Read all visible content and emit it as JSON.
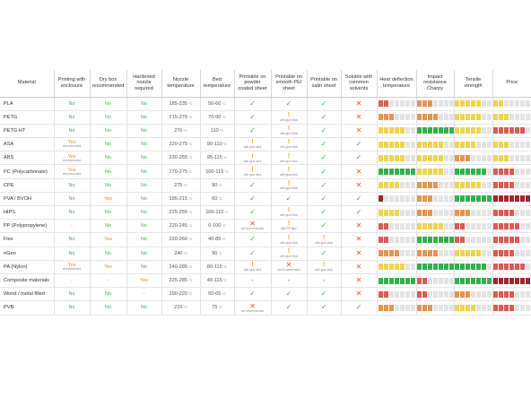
{
  "colors": {
    "ok": "#3fae49",
    "warn": "#f0a500",
    "bad": "#e2532e",
    "bar_green": "#2fb24a",
    "bar_yellow": "#eed54a",
    "bar_orange": "#e9944a",
    "bar_red": "#e2574f",
    "bar_darkred": "#a5232a",
    "bar_empty": "#e3e3e3"
  },
  "headers": {
    "material": "Material",
    "enclosure": "Printing with enclosure",
    "drybox": "Dry box recommended",
    "nozzle": "Hardened nozzle required",
    "nozzle_temp": "Nozzle temperature",
    "bed_temp": "Bed temperature",
    "powder": "Printable on powder coated sheet",
    "pei": "Printable on smooth PEI sheet",
    "satin": "Printable on satin sheet",
    "solvents": "Soluble with common solvents",
    "heat": "Heat deflection temperature",
    "impact": "Impact resistance Charpy",
    "tensile": "Tensile strength",
    "price": "Price"
  },
  "unit": "°C",
  "rows": [
    {
      "name": "PLA",
      "enclosure": {
        "t": "No"
      },
      "drybox": {
        "t": "No"
      },
      "nozzle": {
        "t": "No"
      },
      "nozzle_temp": "185-235",
      "bed_temp": "50-60",
      "powder": {
        "s": "ok"
      },
      "pei": {
        "s": "ok"
      },
      "satin": {
        "s": "ok"
      },
      "solvents": {
        "s": "bad"
      },
      "heat": {
        "level": 2,
        "color": "bar_red"
      },
      "impact": {
        "level": 3,
        "color": "bar_orange"
      },
      "tensile": {
        "level": 5,
        "color": "bar_yellow"
      },
      "price": {
        "level": 2,
        "color": "bar_yellow"
      }
    },
    {
      "name": "PETG",
      "enclosure": {
        "t": "No"
      },
      "drybox": {
        "t": "No"
      },
      "nozzle": {
        "t": "No"
      },
      "nozzle_temp": "215-270",
      "bed_temp": "70-90",
      "powder": {
        "s": "ok"
      },
      "pei": {
        "s": "warn",
        "note": "with glue stick"
      },
      "satin": {
        "s": "ok"
      },
      "solvents": {
        "s": "bad"
      },
      "heat": {
        "level": 3,
        "color": "bar_orange"
      },
      "impact": {
        "level": 4,
        "color": "bar_orange"
      },
      "tensile": {
        "level": 5,
        "color": "bar_yellow"
      },
      "price": {
        "level": 3,
        "color": "bar_yellow"
      }
    },
    {
      "name": "PETG HT",
      "enclosure": {
        "t": "No"
      },
      "drybox": {
        "t": "No"
      },
      "nozzle": {
        "t": "No"
      },
      "nozzle_temp": "270",
      "bed_temp": "110",
      "powder": {
        "s": "ok"
      },
      "pei": {
        "s": "warn",
        "note": "with glue stick"
      },
      "satin": {
        "s": "ok"
      },
      "solvents": {
        "s": "bad"
      },
      "heat": {
        "level": 5,
        "color": "bar_yellow"
      },
      "impact": {
        "level": 7,
        "color": "bar_green"
      },
      "tensile": {
        "level": 5,
        "color": "bar_yellow"
      },
      "price": {
        "level": 6,
        "color": "bar_red"
      }
    },
    {
      "name": "ASA",
      "enclosure": {
        "t": "Yes",
        "sub": "recommended"
      },
      "drybox": {
        "t": "No"
      },
      "nozzle": {
        "t": "No"
      },
      "nozzle_temp": "220-275",
      "bed_temp": "90-110",
      "powder": {
        "s": "warn",
        "note": "with glue stick"
      },
      "pei": {
        "s": "warn",
        "note": "with glue stick"
      },
      "satin": {
        "s": "ok"
      },
      "solvents": {
        "s": "ok"
      },
      "heat": {
        "level": 5,
        "color": "bar_yellow"
      },
      "impact": {
        "level": 5,
        "color": "bar_yellow"
      },
      "tensile": {
        "level": 4,
        "color": "bar_yellow"
      },
      "price": {
        "level": 3,
        "color": "bar_yellow"
      }
    },
    {
      "name": "ABS",
      "enclosure": {
        "t": "Yes",
        "sub": "recommended"
      },
      "drybox": {
        "t": "No"
      },
      "nozzle": {
        "t": "No"
      },
      "nozzle_temp": "230-255",
      "bed_temp": "95-115",
      "powder": {
        "s": "warn",
        "note": "with glue stick"
      },
      "pei": {
        "s": "warn",
        "note": "with glue stick"
      },
      "satin": {
        "s": "ok"
      },
      "solvents": {
        "s": "ok"
      },
      "heat": {
        "level": 5,
        "color": "bar_yellow"
      },
      "impact": {
        "level": 5,
        "color": "bar_yellow"
      },
      "tensile": {
        "level": 3,
        "color": "bar_orange"
      },
      "price": {
        "level": 3,
        "color": "bar_yellow"
      }
    },
    {
      "name": "PC (Polycarbonate)",
      "enclosure": {
        "t": "Yes",
        "sub": "recommended"
      },
      "drybox": {
        "t": "No"
      },
      "nozzle": {
        "t": "No"
      },
      "nozzle_temp": "270-275",
      "bed_temp": "100-115",
      "powder": {
        "s": "warn",
        "note": "with glue stick"
      },
      "pei": {
        "s": "warn",
        "note": "with glue stick"
      },
      "satin": {
        "s": "ok"
      },
      "solvents": {
        "s": "bad"
      },
      "heat": {
        "level": 7,
        "color": "bar_green"
      },
      "impact": {
        "level": 5,
        "color": "bar_yellow"
      },
      "tensile": {
        "level": 6,
        "color": "bar_green"
      },
      "price": {
        "level": 4,
        "color": "bar_red"
      }
    },
    {
      "name": "CPE",
      "enclosure": {
        "t": "No"
      },
      "drybox": {
        "t": "No"
      },
      "nozzle": {
        "t": "No"
      },
      "nozzle_temp": "275",
      "bed_temp": "90",
      "powder": {
        "s": "ok"
      },
      "pei": {
        "s": "warn",
        "note": "with glue stick"
      },
      "satin": {
        "s": "ok"
      },
      "solvents": {
        "s": "bad"
      },
      "heat": {
        "level": 4,
        "color": "bar_yellow"
      },
      "impact": {
        "level": 4,
        "color": "bar_orange"
      },
      "tensile": {
        "level": 5,
        "color": "bar_yellow"
      },
      "price": {
        "level": 4,
        "color": "bar_red"
      }
    },
    {
      "name": "PVA / BVOH",
      "enclosure": {
        "t": "No"
      },
      "drybox": {
        "t": "Yes"
      },
      "nozzle": {
        "t": "No"
      },
      "nozzle_temp": "195-215",
      "bed_temp": "60",
      "powder": {
        "s": "ok"
      },
      "pei": {
        "s": "ok"
      },
      "satin": {
        "s": "ok"
      },
      "solvents": {
        "s": "ok"
      },
      "heat": {
        "level": 1,
        "color": "bar_darkred"
      },
      "impact": {
        "level": 3,
        "color": "bar_orange"
      },
      "tensile": {
        "level": 7,
        "color": "bar_green"
      },
      "price": {
        "level": 7,
        "color": "bar_darkred"
      }
    },
    {
      "name": "HIPS",
      "enclosure": {
        "t": "No"
      },
      "drybox": {
        "t": "No"
      },
      "nozzle": {
        "t": "No"
      },
      "nozzle_temp": "225-255",
      "bed_temp": "100-110",
      "powder": {
        "s": "ok"
      },
      "pei": {
        "s": "warn",
        "note": "with glue stick"
      },
      "satin": {
        "s": "ok"
      },
      "solvents": {
        "s": "ok"
      },
      "heat": {
        "level": 4,
        "color": "bar_yellow"
      },
      "impact": {
        "level": 3,
        "color": "bar_orange"
      },
      "tensile": {
        "level": 3,
        "color": "bar_orange"
      },
      "price": {
        "level": 4,
        "color": "bar_red"
      }
    },
    {
      "name": "PP (Polypropylene)",
      "enclosure": {
        "t": "-"
      },
      "drybox": {
        "t": "No"
      },
      "nozzle": {
        "t": "No"
      },
      "nozzle_temp": "220-245",
      "bed_temp": "0-100",
      "powder": {
        "s": "bad",
        "note": "not recommended"
      },
      "pei": {
        "s": "warn",
        "note": "with PP tape"
      },
      "satin": {
        "s": "ok"
      },
      "solvents": {
        "s": "bad"
      },
      "heat": {
        "level": 2,
        "color": "bar_red"
      },
      "impact": {
        "level": 5,
        "color": "bar_yellow"
      },
      "tensile": {
        "level": 2,
        "color": "bar_red"
      },
      "price": {
        "level": 5,
        "color": "bar_red"
      }
    },
    {
      "name": "Flex",
      "enclosure": {
        "t": "No"
      },
      "drybox": {
        "t": "Yes"
      },
      "nozzle": {
        "t": "No"
      },
      "nozzle_temp": "220-260",
      "bed_temp": "40-85",
      "powder": {
        "s": "ok"
      },
      "pei": {
        "s": "warn",
        "note": "with glue stick"
      },
      "satin": {
        "s": "warn",
        "note": "with glue stick"
      },
      "solvents": {
        "s": "bad"
      },
      "heat": {
        "level": 2,
        "color": "bar_red"
      },
      "impact": {
        "level": 7,
        "color": "bar_green"
      },
      "tensile": {
        "level": 2,
        "color": "bar_red"
      },
      "price": {
        "level": 5,
        "color": "bar_red"
      }
    },
    {
      "name": "nGen",
      "enclosure": {
        "t": "No"
      },
      "drybox": {
        "t": "No"
      },
      "nozzle": {
        "t": "No"
      },
      "nozzle_temp": "240",
      "bed_temp": "90",
      "powder": {
        "s": "ok"
      },
      "pei": {
        "s": "warn",
        "note": "with glue stick"
      },
      "satin": {
        "s": "ok"
      },
      "solvents": {
        "s": "bad"
      },
      "heat": {
        "level": 4,
        "color": "bar_orange"
      },
      "impact": {
        "level": 4,
        "color": "bar_orange"
      },
      "tensile": {
        "level": 5,
        "color": "bar_yellow"
      },
      "price": {
        "level": 4,
        "color": "bar_red"
      }
    },
    {
      "name": "PA (Nylon)",
      "enclosure": {
        "t": "Yes",
        "sub": "recommended"
      },
      "drybox": {
        "t": "Yes"
      },
      "nozzle": {
        "t": "No"
      },
      "nozzle_temp": "240-285",
      "bed_temp": "80-115",
      "powder": {
        "s": "warn",
        "note": "with glue stick"
      },
      "pei": {
        "s": "bad",
        "note": "not recommended"
      },
      "satin": {
        "s": "warn",
        "note": "with glue stick"
      },
      "solvents": {
        "s": "bad"
      },
      "heat": {
        "level": 5,
        "color": "bar_yellow"
      },
      "impact": {
        "level": 7,
        "color": "bar_green"
      },
      "tensile": {
        "level": 6,
        "color": "bar_green"
      },
      "price": {
        "level": 6,
        "color": "bar_red"
      }
    },
    {
      "name": "Composite materials",
      "enclosure": {
        "t": "-"
      },
      "drybox": {
        "t": "-"
      },
      "nozzle": {
        "t": "Yes"
      },
      "nozzle_temp": "225-285",
      "bed_temp": "40-115",
      "powder": {
        "s": "dash"
      },
      "pei": {
        "s": "dash"
      },
      "satin": {
        "s": "dash"
      },
      "solvents": {
        "s": "bad"
      },
      "heat": {
        "level": 7,
        "color": "bar_green"
      },
      "impact": {
        "level": 2,
        "color": "bar_red"
      },
      "tensile": {
        "level": 7,
        "color": "bar_green"
      },
      "price": {
        "level": 7,
        "color": "bar_darkred"
      }
    },
    {
      "name": "Wood / metal filled",
      "enclosure": {
        "t": "No"
      },
      "drybox": {
        "t": "No"
      },
      "nozzle": {
        "t": "-"
      },
      "nozzle_temp": "190-220",
      "bed_temp": "60-65",
      "powder": {
        "s": "ok"
      },
      "pei": {
        "s": "ok"
      },
      "satin": {
        "s": "ok"
      },
      "solvents": {
        "s": "bad"
      },
      "heat": {
        "level": 2,
        "color": "bar_red"
      },
      "impact": {
        "level": 2,
        "color": "bar_red"
      },
      "tensile": {
        "level": 3,
        "color": "bar_orange"
      },
      "price": {
        "level": 4,
        "color": "bar_red"
      }
    },
    {
      "name": "PVB",
      "enclosure": {
        "t": "No"
      },
      "drybox": {
        "t": "No"
      },
      "nozzle": {
        "t": "No"
      },
      "nozzle_temp": "215",
      "bed_temp": "75",
      "powder": {
        "s": "bad",
        "note": "not recommended"
      },
      "pei": {
        "s": "ok"
      },
      "satin": {
        "s": "ok"
      },
      "solvents": {
        "s": "ok"
      },
      "heat": {
        "level": 3,
        "color": "bar_orange"
      },
      "impact": {
        "level": 3,
        "color": "bar_orange"
      },
      "tensile": {
        "level": 4,
        "color": "bar_yellow"
      },
      "price": {
        "level": 4,
        "color": "bar_red"
      }
    }
  ]
}
